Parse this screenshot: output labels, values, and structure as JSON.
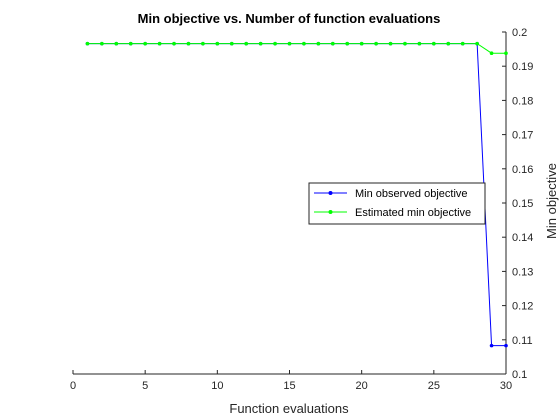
{
  "chart_data": {
    "type": "line",
    "title": "Min objective vs. Number of function evaluations",
    "xlabel": "Function evaluations",
    "ylabel": "Min objective",
    "xlim": [
      0,
      30
    ],
    "ylim": [
      0.1,
      0.2
    ],
    "xticks": [
      0,
      5,
      10,
      15,
      20,
      25,
      30
    ],
    "yticks": [
      0.1,
      0.11,
      0.12,
      0.13,
      0.14,
      0.15,
      0.16,
      0.17,
      0.18,
      0.19,
      0.2
    ],
    "yaxis_location": "right",
    "grid": false,
    "legend_placement": "center-right",
    "series": [
      {
        "name": "Min observed objective",
        "color": "#0000ff",
        "marker": "dot",
        "x": [
          1,
          2,
          3,
          4,
          5,
          6,
          7,
          8,
          9,
          10,
          11,
          12,
          13,
          14,
          15,
          16,
          17,
          18,
          19,
          20,
          21,
          22,
          23,
          24,
          25,
          26,
          27,
          28,
          29,
          30
        ],
        "y": [
          0.1966,
          0.1966,
          0.1966,
          0.1966,
          0.1966,
          0.1966,
          0.1966,
          0.1966,
          0.1966,
          0.1966,
          0.1966,
          0.1966,
          0.1966,
          0.1966,
          0.1966,
          0.1966,
          0.1966,
          0.1966,
          0.1966,
          0.1966,
          0.1966,
          0.1966,
          0.1966,
          0.1966,
          0.1966,
          0.1966,
          0.1966,
          0.1966,
          0.1083,
          0.1083
        ]
      },
      {
        "name": "Estimated min objective",
        "color": "#00ff00",
        "marker": "dot",
        "x": [
          1,
          2,
          3,
          4,
          5,
          6,
          7,
          8,
          9,
          10,
          11,
          12,
          13,
          14,
          15,
          16,
          17,
          18,
          19,
          20,
          21,
          22,
          23,
          24,
          25,
          26,
          27,
          28,
          29,
          30
        ],
        "y": [
          0.1966,
          0.1966,
          0.1966,
          0.1966,
          0.1966,
          0.1966,
          0.1966,
          0.1966,
          0.1966,
          0.1966,
          0.1966,
          0.1966,
          0.1966,
          0.1966,
          0.1966,
          0.1966,
          0.1966,
          0.1966,
          0.1966,
          0.1966,
          0.1966,
          0.1966,
          0.1966,
          0.1966,
          0.1966,
          0.1966,
          0.1966,
          0.1966,
          0.1938,
          0.1938
        ]
      }
    ]
  }
}
